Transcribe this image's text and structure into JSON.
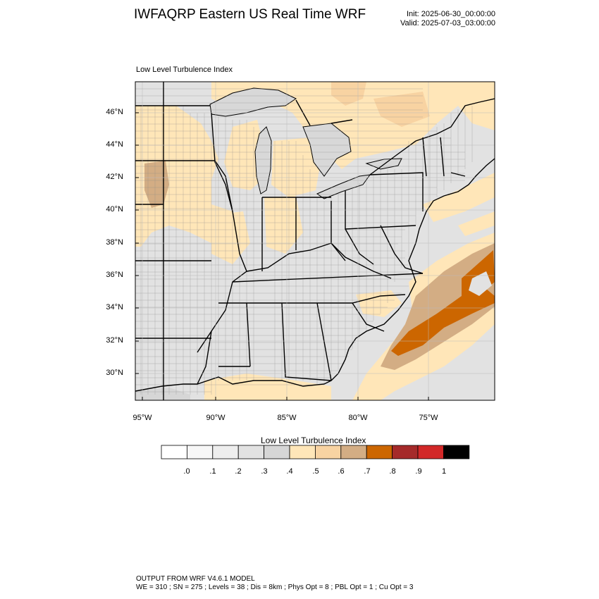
{
  "header": {
    "title": "IWFAQRP Eastern US Real Time WRF",
    "init": "Init: 2025-06-30_00:00:00",
    "valid": "Valid: 2025-07-03_03:00:00"
  },
  "map": {
    "field_title": "Low Level Turbulence Index",
    "lat_labels": [
      "46°N",
      "44°N",
      "42°N",
      "40°N",
      "38°N",
      "36°N",
      "34°N",
      "32°N",
      "30°N"
    ],
    "lon_labels": [
      "95°W",
      "90°W",
      "85°W",
      "80°W",
      "75°W"
    ],
    "land_color": "#e2e2e2",
    "water_color": "#d8d8d8",
    "state_line_color": "#000000"
  },
  "colorbar": {
    "title": "Low Level Turbulence Index",
    "labels": [
      ".0",
      ".1",
      ".2",
      ".3",
      ".4",
      ".5",
      ".6",
      ".7",
      ".8",
      ".9",
      "1"
    ],
    "colors": [
      "#ffffff",
      "#f7f7f7",
      "#eeeeee",
      "#e2e2e2",
      "#d6d6d6",
      "#ffe6b8",
      "#f8d3a2",
      "#d3ad84",
      "#cc6600",
      "#a52a2a",
      "#d22828",
      "#000000"
    ]
  },
  "footer": {
    "line1": "OUTPUT FROM WRF V4.6.1 MODEL",
    "line2": "WE = 310 ; SN = 275 ; Levels = 38 ; Dis = 8km ; Phys Opt = 8 ; PBL Opt = 1 ; Cu Opt = 3"
  }
}
